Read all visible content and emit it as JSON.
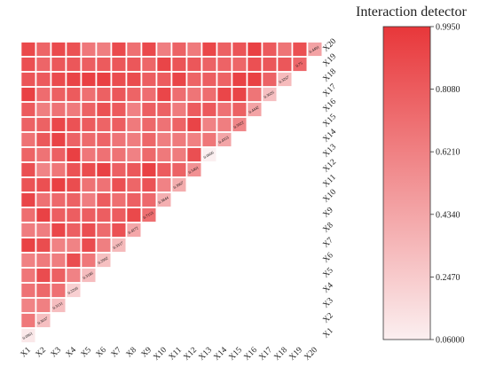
{
  "chart_data": {
    "type": "heatmap",
    "title": "Interaction detector",
    "x_labels": [
      "X1",
      "X2",
      "X3",
      "X4",
      "X5",
      "X6",
      "X7",
      "X8",
      "X9",
      "X10",
      "X11",
      "X12",
      "X13",
      "X14",
      "X15",
      "X16",
      "X17",
      "X18",
      "X19",
      "X20"
    ],
    "y_labels": [
      "X1",
      "X2",
      "X3",
      "X4",
      "X5",
      "X6",
      "X7",
      "X8",
      "X9",
      "X10",
      "X11",
      "X12",
      "X13",
      "X14",
      "X15",
      "X16",
      "X17",
      "X18",
      "X19",
      "X20"
    ],
    "layout": "lower-triangle: cell (column Xi, row Xj) shown for i <= j; diagonal holds single-factor values",
    "diagonal_values": [
      0.0961,
      0.3037,
      0.3131,
      0.2209,
      0.3186,
      0.2992,
      0.3317,
      0.4272,
      0.7153,
      0.3844,
      0.3967,
      0.5401,
      0.0606,
      0.4353,
      0.5922,
      0.4442,
      0.3026,
      0.3267,
      0.75,
      0.4491
    ],
    "colorbar": {
      "min": 0.06,
      "max": 0.995,
      "ticks": [
        "0.9950",
        "0.8080",
        "0.6210",
        "0.4340",
        "0.2470",
        "0.06000"
      ],
      "colors": [
        "#fbeff0",
        "#e8373a"
      ]
    },
    "color_low": "#fbeff0",
    "color_high": "#e8373a"
  }
}
